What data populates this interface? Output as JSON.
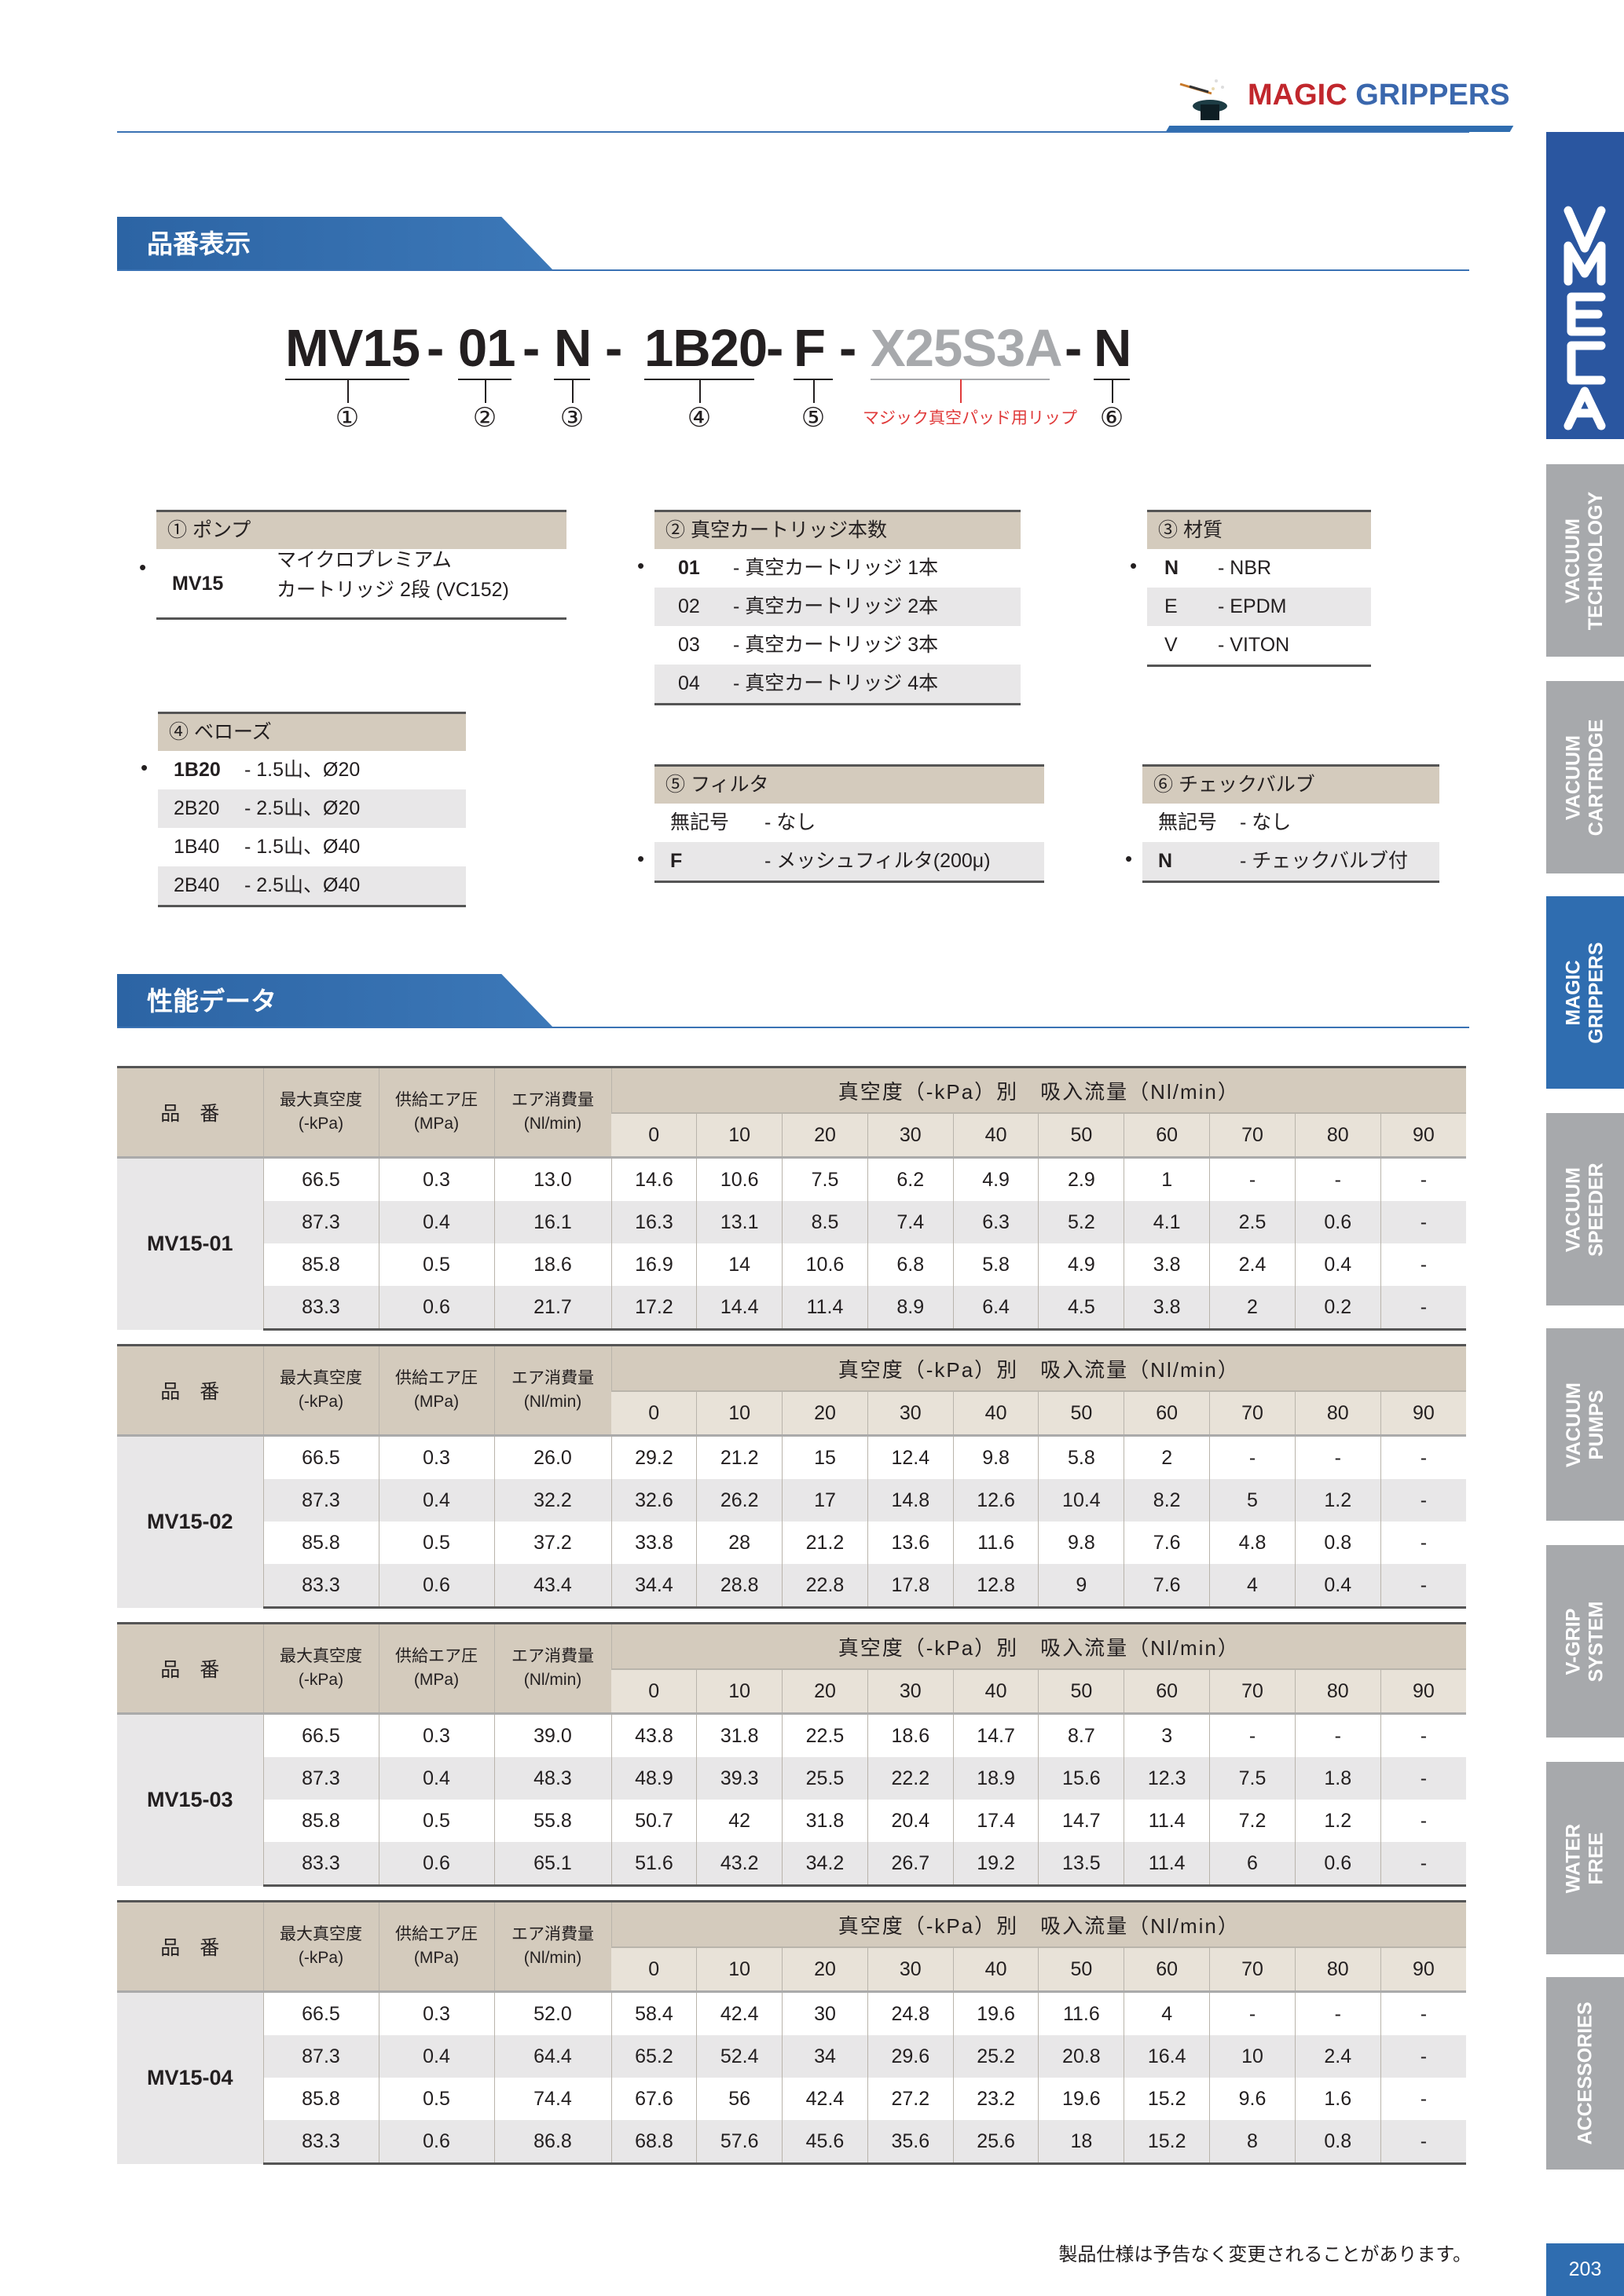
{
  "header": {
    "brand_red": "MAGIC",
    "brand_blue": "GRIPPERS",
    "logo_icon": "magic-hat-wand-icon"
  },
  "sidebar": {
    "logo": "VMECA",
    "tabs": [
      {
        "label": "VACUUM TECHNOLOGY",
        "active": false
      },
      {
        "label": "VACUUM CARTRIDGE",
        "active": false
      },
      {
        "label": "MAGIC GRIPPERS",
        "active": true
      },
      {
        "label": "VACUUM SPEEDER",
        "active": false
      },
      {
        "label": "VACUUM PUMPS",
        "active": false
      },
      {
        "label": "V-GRIP SYSTEM",
        "active": false
      },
      {
        "label": "WATER FREE",
        "active": false
      },
      {
        "label": "ACCESSORIES",
        "active": false
      }
    ],
    "page_number": "203"
  },
  "section1": {
    "title": "品番表示"
  },
  "part_number": {
    "segments": [
      "MV15",
      "01",
      "N",
      "1B20",
      "F",
      "X25S3A",
      "N"
    ],
    "separator": "-",
    "labels": [
      "①",
      "②",
      "③",
      "④",
      "⑤",
      "マジック真空パッド用リップ",
      "⑥"
    ]
  },
  "options": {
    "pump": {
      "title": "① ポンプ",
      "rows": [
        {
          "code": "MV15",
          "desc1": "マイクロプレミアム",
          "desc2": "カートリッジ 2段 (VC152)",
          "default": true
        }
      ]
    },
    "cartridges": {
      "title": "② 真空カートリッジ本数",
      "rows": [
        {
          "code": "01",
          "desc": "- 真空カートリッジ  1本",
          "default": true
        },
        {
          "code": "02",
          "desc": "- 真空カートリッジ  2本",
          "default": false
        },
        {
          "code": "03",
          "desc": "- 真空カートリッジ  3本",
          "default": false
        },
        {
          "code": "04",
          "desc": "- 真空カートリッジ  4本",
          "default": false
        }
      ]
    },
    "material": {
      "title": "③ 材質",
      "rows": [
        {
          "code": "N",
          "desc": "-  NBR",
          "default": true
        },
        {
          "code": "E",
          "desc": "-  EPDM",
          "default": false
        },
        {
          "code": "V",
          "desc": "-  VITON",
          "default": false
        }
      ]
    },
    "bellows": {
      "title": "④ ベローズ",
      "rows": [
        {
          "code": "1B20",
          "desc": "- 1.5山、Ø20",
          "default": true
        },
        {
          "code": "2B20",
          "desc": "- 2.5山、Ø20",
          "default": false
        },
        {
          "code": "1B40",
          "desc": "- 1.5山、Ø40",
          "default": false
        },
        {
          "code": "2B40",
          "desc": "- 2.5山、Ø40",
          "default": false
        }
      ]
    },
    "filter": {
      "title": "⑤ フィルタ",
      "rows": [
        {
          "code": "無記号",
          "desc": "-  なし",
          "default": false
        },
        {
          "code": "F",
          "desc": "-  メッシュフィルタ(200μ)",
          "default": true
        }
      ]
    },
    "check_valve": {
      "title": "⑥ チェックバルブ",
      "rows": [
        {
          "code": "無記号",
          "desc": "-  なし",
          "default": false
        },
        {
          "code": "N",
          "desc": "-  チェックバルブ付",
          "default": true
        }
      ]
    }
  },
  "section2": {
    "title": "性能データ"
  },
  "table_headers": {
    "model": "品　番",
    "max_vacuum": [
      "最大真空度",
      "(-kPa)"
    ],
    "supply_pressure": [
      "供給エア圧",
      "(MPa)"
    ],
    "air_consumption": [
      "エア消費量",
      "(Nl/min)"
    ],
    "flow_title": "真空度（-kPa）別　吸入流量（Nl/min）",
    "vacuum_levels": [
      "0",
      "10",
      "20",
      "30",
      "40",
      "50",
      "60",
      "70",
      "80",
      "90"
    ]
  },
  "tables": [
    {
      "model": "MV15-01",
      "rows": [
        [
          "66.5",
          "0.3",
          "13.0",
          "14.6",
          "10.6",
          "7.5",
          "6.2",
          "4.9",
          "2.9",
          "1",
          "-",
          "-",
          "-"
        ],
        [
          "87.3",
          "0.4",
          "16.1",
          "16.3",
          "13.1",
          "8.5",
          "7.4",
          "6.3",
          "5.2",
          "4.1",
          "2.5",
          "0.6",
          "-"
        ],
        [
          "85.8",
          "0.5",
          "18.6",
          "16.9",
          "14",
          "10.6",
          "6.8",
          "5.8",
          "4.9",
          "3.8",
          "2.4",
          "0.4",
          "-"
        ],
        [
          "83.3",
          "0.6",
          "21.7",
          "17.2",
          "14.4",
          "11.4",
          "8.9",
          "6.4",
          "4.5",
          "3.8",
          "2",
          "0.2",
          "-"
        ]
      ]
    },
    {
      "model": "MV15-02",
      "rows": [
        [
          "66.5",
          "0.3",
          "26.0",
          "29.2",
          "21.2",
          "15",
          "12.4",
          "9.8",
          "5.8",
          "2",
          "-",
          "-",
          "-"
        ],
        [
          "87.3",
          "0.4",
          "32.2",
          "32.6",
          "26.2",
          "17",
          "14.8",
          "12.6",
          "10.4",
          "8.2",
          "5",
          "1.2",
          "-"
        ],
        [
          "85.8",
          "0.5",
          "37.2",
          "33.8",
          "28",
          "21.2",
          "13.6",
          "11.6",
          "9.8",
          "7.6",
          "4.8",
          "0.8",
          "-"
        ],
        [
          "83.3",
          "0.6",
          "43.4",
          "34.4",
          "28.8",
          "22.8",
          "17.8",
          "12.8",
          "9",
          "7.6",
          "4",
          "0.4",
          "-"
        ]
      ]
    },
    {
      "model": "MV15-03",
      "rows": [
        [
          "66.5",
          "0.3",
          "39.0",
          "43.8",
          "31.8",
          "22.5",
          "18.6",
          "14.7",
          "8.7",
          "3",
          "-",
          "-",
          "-"
        ],
        [
          "87.3",
          "0.4",
          "48.3",
          "48.9",
          "39.3",
          "25.5",
          "22.2",
          "18.9",
          "15.6",
          "12.3",
          "7.5",
          "1.8",
          "-"
        ],
        [
          "85.8",
          "0.5",
          "55.8",
          "50.7",
          "42",
          "31.8",
          "20.4",
          "17.4",
          "14.7",
          "11.4",
          "7.2",
          "1.2",
          "-"
        ],
        [
          "83.3",
          "0.6",
          "65.1",
          "51.6",
          "43.2",
          "34.2",
          "26.7",
          "19.2",
          "13.5",
          "11.4",
          "6",
          "0.6",
          "-"
        ]
      ]
    },
    {
      "model": "MV15-04",
      "rows": [
        [
          "66.5",
          "0.3",
          "52.0",
          "58.4",
          "42.4",
          "30",
          "24.8",
          "19.6",
          "11.6",
          "4",
          "-",
          "-",
          "-"
        ],
        [
          "87.3",
          "0.4",
          "64.4",
          "65.2",
          "52.4",
          "34",
          "29.6",
          "25.2",
          "20.8",
          "16.4",
          "10",
          "2.4",
          "-"
        ],
        [
          "85.8",
          "0.5",
          "74.4",
          "67.6",
          "56",
          "42.4",
          "27.2",
          "23.2",
          "19.6",
          "15.2",
          "9.6",
          "1.6",
          "-"
        ],
        [
          "83.3",
          "0.6",
          "86.8",
          "68.8",
          "57.6",
          "45.6",
          "35.6",
          "25.6",
          "18",
          "15.2",
          "8",
          "0.8",
          "-"
        ]
      ]
    }
  ],
  "footer": {
    "note": "製品仕様は予告なく変更されることがあります。"
  },
  "colors": {
    "brand_red": "#c1272d",
    "brand_blue": "#3a67ad",
    "accent": "#2f6db0",
    "sidebar_inactive": "#a7a9ac",
    "table_header": "#d4cbbd",
    "row_alt": "#e8e7e8"
  }
}
